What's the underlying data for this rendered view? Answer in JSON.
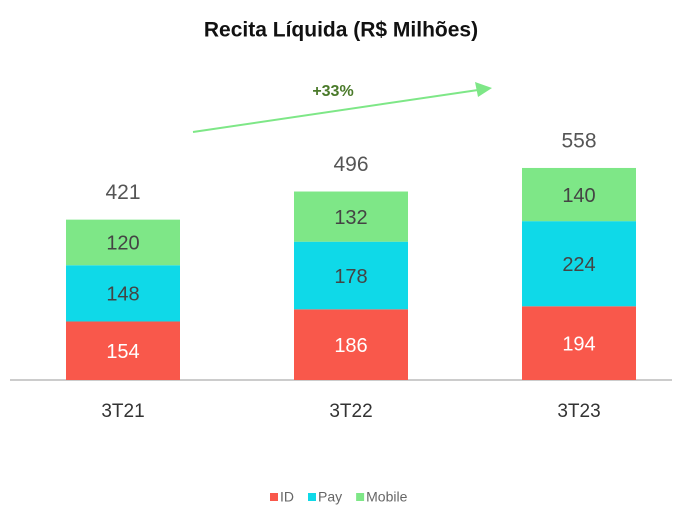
{
  "chart_data": {
    "type": "stacked-bar",
    "title": "Recita Líquida (R$ Milhões)",
    "categories": [
      "3T21",
      "3T22",
      "3T23"
    ],
    "series": [
      {
        "name": "ID",
        "color": "#f9584b",
        "values": [
          154,
          186,
          194
        ]
      },
      {
        "name": "Pay",
        "color": "#0fd9e8",
        "values": [
          148,
          178,
          224
        ]
      },
      {
        "name": "Mobile",
        "color": "#7ee787",
        "values": [
          120,
          132,
          140
        ]
      }
    ],
    "totals": [
      421,
      496,
      558
    ],
    "annotation": "+33%",
    "legend": "bottom"
  }
}
